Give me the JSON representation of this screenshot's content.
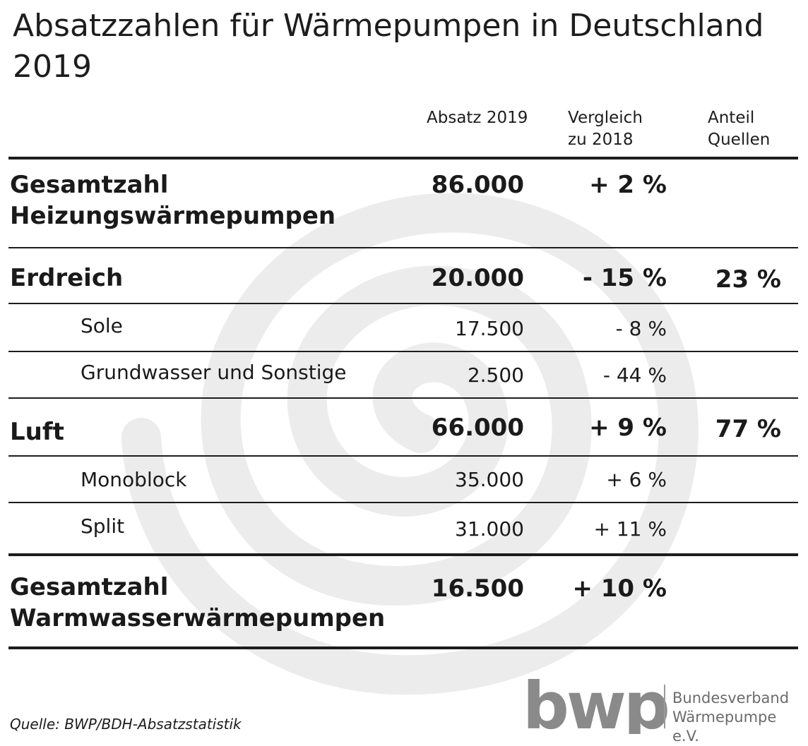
{
  "chart_data": {
    "type": "table",
    "title": "Absatzzahlen für Wärmepumpen in Deutschland 2019",
    "columns": [
      "Absatz 2019",
      "Vergleich zu 2018",
      "Anteil Quellen"
    ],
    "column_headers": {
      "absatz": "Absatz 2019",
      "vergleich_line1": "Vergleich",
      "vergleich_line2": "zu 2018",
      "anteil_line1": "Anteil",
      "anteil_line2": "Quellen"
    },
    "rows": [
      {
        "label_line1": "Gesamtzahl",
        "label_line2": "Heizungswärmepumpen",
        "absatz": "86.000",
        "vergleich": "+ 2 %",
        "anteil": ""
      },
      {
        "label_line1": "Erdreich",
        "label_line2": "",
        "absatz": "20.000",
        "vergleich": "- 15 %",
        "anteil": "23 %"
      },
      {
        "label_line1": "Sole",
        "label_line2": "",
        "absatz": "17.500",
        "vergleich": "- 8 %",
        "anteil": ""
      },
      {
        "label_line1": "Grundwasser und Sonstige",
        "label_line2": "",
        "absatz": "2.500",
        "vergleich": "- 44 %",
        "anteil": ""
      },
      {
        "label_line1": "Luft",
        "label_line2": "",
        "absatz": "66.000",
        "vergleich": "+ 9 %",
        "anteil": "77 %"
      },
      {
        "label_line1": "Monoblock",
        "label_line2": "",
        "absatz": "35.000",
        "vergleich": "+ 6 %",
        "anteil": ""
      },
      {
        "label_line1": "Split",
        "label_line2": "",
        "absatz": "31.000",
        "vergleich": "+ 11 %",
        "anteil": ""
      },
      {
        "label_line1": "Gesamtzahl",
        "label_line2": "Warmwasserwärmepumpen",
        "absatz": "16.500",
        "vergleich": "+ 10 %",
        "anteil": ""
      }
    ],
    "source": "Quelle: BWP/BDH-Absatzstatistik"
  },
  "logo": {
    "mark": "bwp",
    "line1": "Bundesverband",
    "line2": "Wärmepumpe e.V."
  },
  "colors": {
    "text": "#1d1d1d",
    "swirl": "#ececec",
    "logo": "#8a8a8a"
  }
}
